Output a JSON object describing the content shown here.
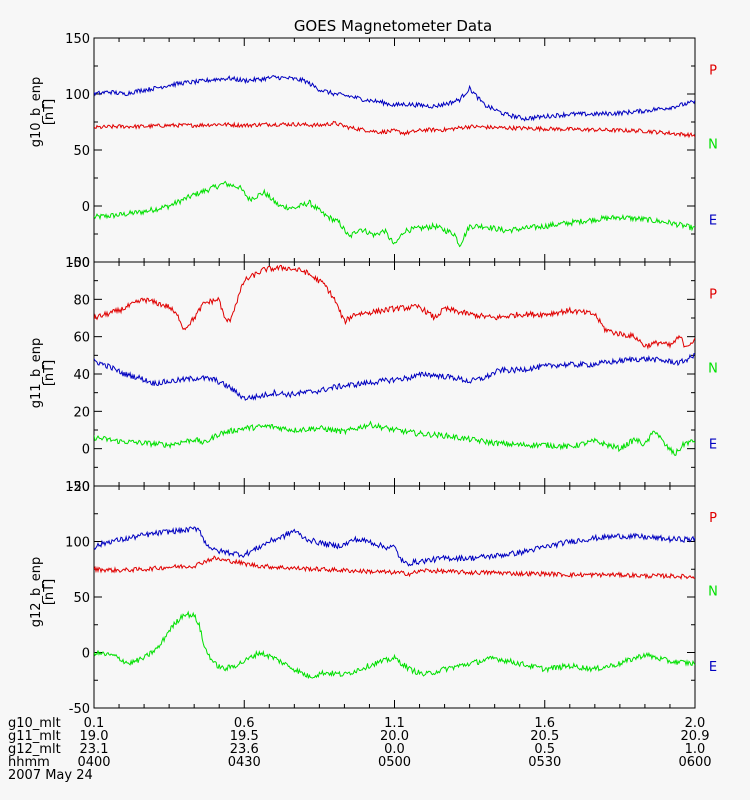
{
  "chart_data": {
    "type": "line",
    "title": "GOES Magnetometer Data",
    "date_label": "2007 May 24",
    "colors": {
      "P": "#e00000",
      "N": "#00e000",
      "E": "#0000c0"
    },
    "x_rows": [
      {
        "label": "g10_mlt",
        "values": [
          "0.1",
          "0.6",
          "1.1",
          "1.6",
          "2.0"
        ]
      },
      {
        "label": "g11_mlt",
        "values": [
          "19.0",
          "19.5",
          "20.0",
          "20.5",
          "20.9"
        ]
      },
      {
        "label": "g12_mlt",
        "values": [
          "23.1",
          "23.6",
          "0.0",
          "0.5",
          "1.0"
        ]
      },
      {
        "label": "hhmm",
        "values": [
          "0400",
          "0430",
          "0500",
          "0530",
          "0600"
        ]
      }
    ],
    "x_major_minutes": [
      0,
      30,
      60,
      90,
      120
    ],
    "x_minor_step_minutes": 5,
    "x_range_minutes": [
      0,
      120
    ],
    "panels": [
      {
        "ylabel": "g10_b_enp",
        "unit": "[nT]",
        "ylim": [
          -50,
          150
        ],
        "yticks": [
          -50,
          0,
          50,
          100,
          150
        ],
        "yticklabels": [
          "-50",
          "0",
          "50",
          "100",
          "150"
        ],
        "ylabel_center": 112,
        "legend": [
          "P",
          "N",
          "E"
        ],
        "series": [
          {
            "name": "E",
            "noise": 2.0,
            "x": [
              0,
              3,
              6,
              9,
              12,
              15,
              18,
              21,
              24,
              27,
              30,
              33,
              36,
              39,
              42,
              45,
              48,
              51,
              54,
              57,
              60,
              62,
              65,
              68,
              71,
              73,
              75,
              78,
              82,
              86,
              90,
              95,
              100,
              105,
              110,
              115,
              120
            ],
            "y": [
              100,
              102,
              100,
              103,
              105,
              108,
              110,
              111,
              113,
              114,
              112,
              113,
              115,
              114,
              112,
              104,
              100,
              98,
              95,
              93,
              90,
              91,
              90,
              89,
              92,
              95,
              105,
              90,
              82,
              78,
              80,
              82,
              82,
              83,
              85,
              88,
              93
            ]
          },
          {
            "name": "P",
            "noise": 1.8,
            "x": [
              0,
              5,
              10,
              15,
              20,
              25,
              30,
              35,
              40,
              45,
              48,
              51,
              54,
              57,
              60,
              62,
              66,
              70,
              75,
              80,
              90,
              100,
              110,
              115,
              120
            ],
            "y": [
              70,
              71,
              71,
              72,
              72,
              73,
              72,
              73,
              73,
              72,
              74,
              70,
              68,
              66,
              67,
              65,
              68,
              68,
              71,
              70,
              69,
              68,
              67,
              65,
              63
            ]
          },
          {
            "name": "N",
            "noise": 2.5,
            "x": [
              0,
              5,
              10,
              15,
              20,
              23,
              26,
              29,
              31,
              34,
              37,
              40,
              43,
              46,
              49,
              51,
              53,
              56,
              58,
              60,
              62,
              65,
              68,
              72,
              73,
              75,
              78,
              82,
              86,
              90,
              95,
              100,
              105,
              110,
              115,
              120
            ],
            "y": [
              -10,
              -8,
              -5,
              0,
              10,
              15,
              20,
              17,
              6,
              12,
              0,
              -2,
              3,
              -8,
              -15,
              -28,
              -20,
              -26,
              -22,
              -35,
              -22,
              -20,
              -18,
              -25,
              -35,
              -18,
              -18,
              -22,
              -20,
              -18,
              -15,
              -12,
              -10,
              -12,
              -15,
              -20
            ]
          }
        ]
      },
      {
        "ylabel": "g11_b_enp",
        "unit": "[nT]",
        "ylim": [
          -20,
          100
        ],
        "yticks": [
          -20,
          0,
          20,
          40,
          60,
          80,
          100
        ],
        "yticklabels": [
          "-20",
          "0",
          "20",
          "40",
          "60",
          "80",
          "100"
        ],
        "ylabel_center": 373,
        "legend": [
          "P",
          "N",
          "E"
        ],
        "series": [
          {
            "name": "P",
            "noise": 1.5,
            "x": [
              0,
              5,
              10,
              15,
              17,
              18,
              20,
              22,
              25,
              26,
              27,
              28,
              30,
              32,
              34,
              38,
              42,
              46,
              48,
              50,
              52,
              55,
              60,
              65,
              68,
              70,
              75,
              80,
              85,
              90,
              95,
              100,
              102,
              104,
              106,
              108,
              110,
              113,
              115,
              117,
              118,
              120
            ],
            "y": [
              70,
              74,
              80,
              76,
              70,
              64,
              70,
              78,
              80,
              70,
              68,
              75,
              90,
              93,
              96,
              97,
              95,
              88,
              80,
              68,
              72,
              73,
              75,
              76,
              70,
              75,
              72,
              70,
              72,
              72,
              74,
              72,
              64,
              62,
              61,
              60,
              55,
              57,
              55,
              60,
              55,
              58
            ]
          },
          {
            "name": "E",
            "noise": 1.5,
            "x": [
              0,
              3,
              6,
              9,
              12,
              15,
              18,
              21,
              24,
              27,
              30,
              33,
              36,
              39,
              42,
              45,
              48,
              51,
              54,
              57,
              60,
              63,
              66,
              69,
              72,
              75,
              78,
              81,
              84,
              87,
              90,
              93,
              96,
              99,
              102,
              105,
              108,
              111,
              114,
              117,
              120
            ],
            "y": [
              47,
              44,
              40,
              38,
              35,
              36,
              37,
              38,
              37,
              33,
              27,
              28,
              30,
              29,
              30,
              31,
              33,
              34,
              35,
              36,
              37,
              38,
              40,
              39,
              38,
              36,
              38,
              42,
              42,
              43,
              44,
              45,
              45,
              45,
              46,
              47,
              48,
              48,
              47,
              46,
              50
            ]
          },
          {
            "name": "N",
            "noise": 1.5,
            "x": [
              0,
              5,
              10,
              15,
              20,
              22,
              25,
              30,
              35,
              40,
              45,
              50,
              55,
              60,
              65,
              70,
              75,
              80,
              85,
              90,
              95,
              100,
              105,
              108,
              110,
              112,
              114,
              116,
              118,
              120
            ],
            "y": [
              6,
              4,
              3,
              2,
              5,
              3,
              8,
              11,
              12,
              10,
              11,
              9,
              13,
              10,
              8,
              7,
              5,
              3,
              2,
              2,
              1,
              4,
              0,
              5,
              2,
              10,
              2,
              -3,
              3,
              4
            ]
          }
        ]
      },
      {
        "ylabel": "g12_b_enp",
        "unit": "[nT]",
        "ylim": [
          -50,
          150
        ],
        "yticks": [
          -50,
          0,
          50,
          100,
          150
        ],
        "yticklabels": [
          "-50",
          "0",
          "50",
          "100",
          "150"
        ],
        "ylabel_center": 592,
        "legend": [
          "P",
          "N",
          "E"
        ],
        "series": [
          {
            "name": "E",
            "noise": 2.5,
            "x": [
              0,
              3,
              6,
              9,
              12,
              15,
              18,
              21,
              22,
              24,
              27,
              30,
              33,
              35,
              38,
              40,
              42,
              44,
              46,
              48,
              50,
              52,
              55,
              58,
              60,
              61,
              62,
              65,
              70,
              75,
              80,
              85,
              90,
              95,
              100,
              105,
              110,
              115,
              120
            ],
            "y": [
              95,
              100,
              102,
              105,
              107,
              109,
              110,
              112,
              100,
              92,
              90,
              88,
              95,
              100,
              105,
              110,
              103,
              100,
              98,
              96,
              97,
              102,
              100,
              95,
              95,
              86,
              80,
              82,
              85,
              85,
              87,
              90,
              95,
              100,
              103,
              105,
              104,
              102,
              102
            ]
          },
          {
            "name": "P",
            "noise": 2.0,
            "x": [
              0,
              5,
              10,
              15,
              20,
              22,
              24,
              26,
              28,
              30,
              33,
              36,
              40,
              45,
              50,
              55,
              60,
              63,
              66,
              70,
              75,
              80,
              85,
              90,
              95,
              100,
              105,
              110,
              115,
              120
            ],
            "y": [
              75,
              74,
              75,
              77,
              78,
              82,
              85,
              83,
              82,
              80,
              78,
              77,
              76,
              75,
              74,
              73,
              72,
              71,
              74,
              73,
              72,
              72,
              71,
              71,
              70,
              70,
              70,
              69,
              69,
              68
            ]
          },
          {
            "name": "N",
            "noise": 2.5,
            "x": [
              0,
              4,
              7,
              10,
              13,
              15,
              17,
              18,
              20,
              21,
              22,
              24,
              26,
              28,
              30,
              33,
              36,
              40,
              43,
              46,
              50,
              53,
              56,
              60,
              63,
              66,
              70,
              75,
              80,
              85,
              90,
              95,
              100,
              105,
              108,
              110,
              115,
              120
            ],
            "y": [
              0,
              -3,
              -10,
              -5,
              5,
              20,
              30,
              35,
              33,
              25,
              5,
              -10,
              -15,
              -12,
              -8,
              0,
              -5,
              -15,
              -22,
              -18,
              -20,
              -15,
              -10,
              -5,
              -15,
              -20,
              -15,
              -10,
              -5,
              -10,
              -15,
              -12,
              -15,
              -10,
              -5,
              -2,
              -8,
              -10
            ]
          }
        ]
      }
    ]
  }
}
